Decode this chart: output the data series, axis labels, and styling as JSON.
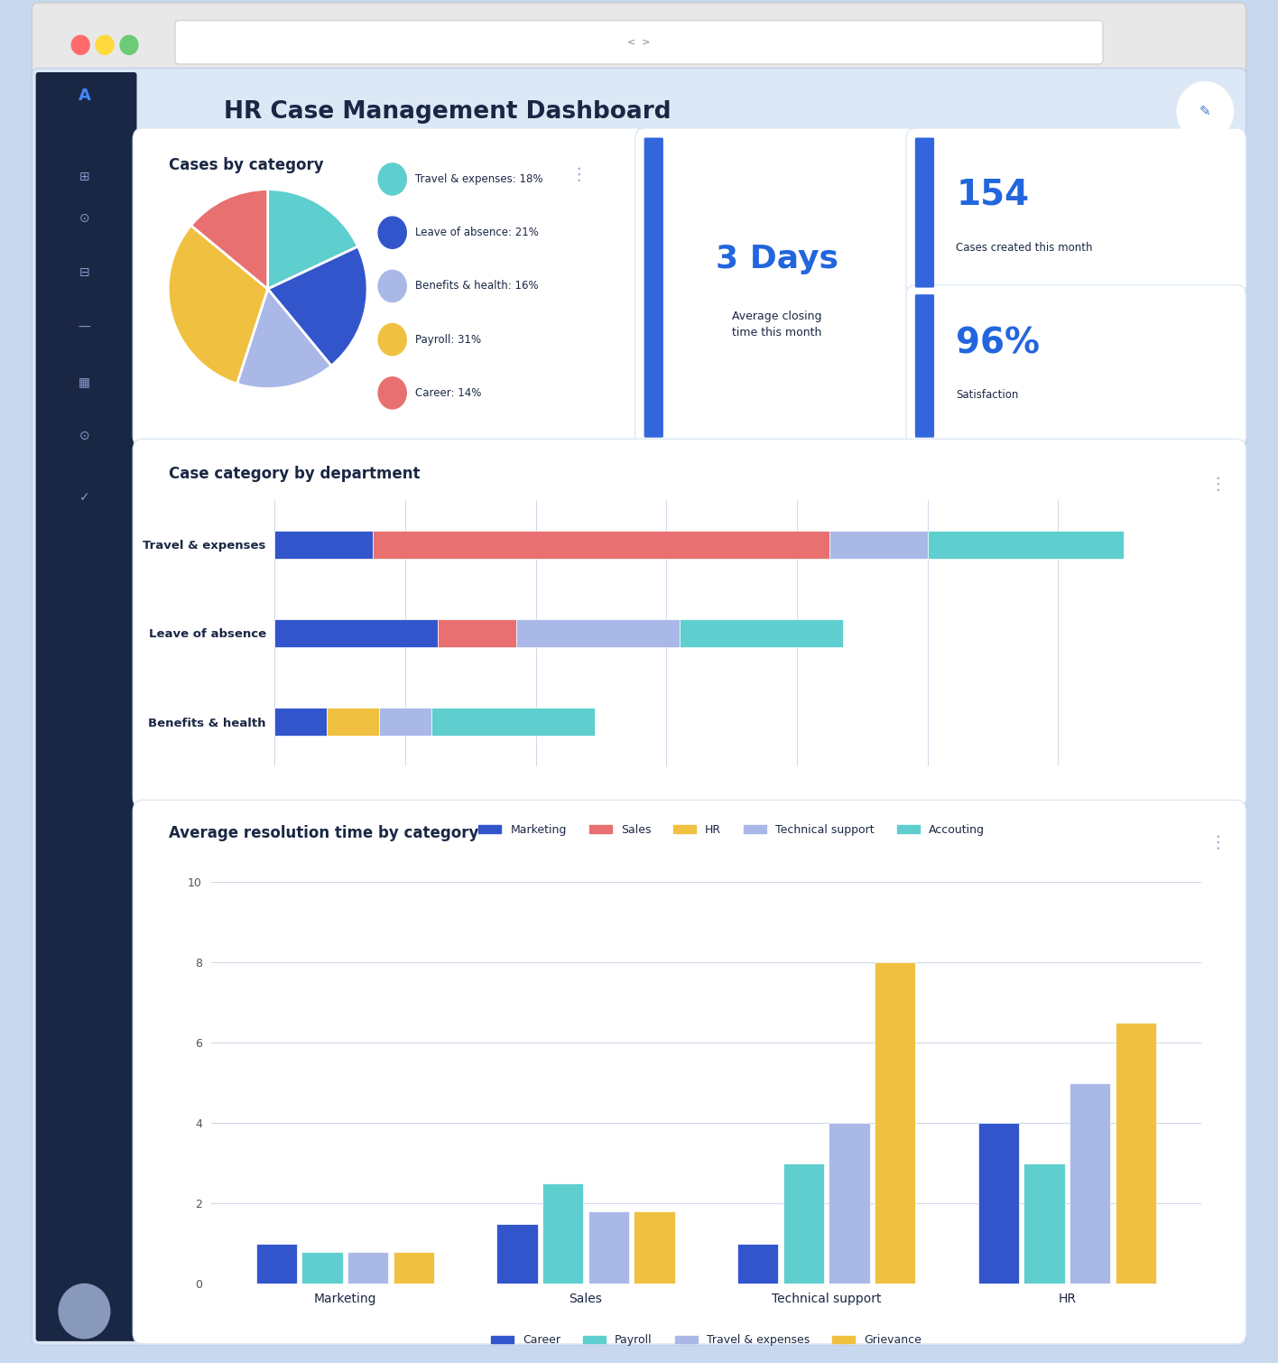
{
  "title": "HR Case Management Dashboard",
  "bg_color": "#dce8f5",
  "sidebar_color": "#1a2744",
  "card_color": "#ffffff",
  "pie_title": "Cases by category",
  "pie_labels": [
    "Travel & expenses",
    "Leave of absence",
    "Benefits & health",
    "Payroll",
    "Career"
  ],
  "pie_values": [
    18,
    21,
    16,
    31,
    14
  ],
  "pie_colors": [
    "#5ecece",
    "#3355cc",
    "#aab8e8",
    "#f0c040",
    "#e87070"
  ],
  "stat1_value": "154",
  "stat1_label": "Cases created this month",
  "stat2_value": "3 Days",
  "stat2_label": "Average closing\ntime this month",
  "stat3_value": "96%",
  "stat3_label": "Satisfaction",
  "hbar_title": "Case category by department",
  "hbar_categories": [
    "Travel & expenses",
    "Leave of absence",
    "Benefits & health"
  ],
  "hbar_departments": [
    "Marketing",
    "Sales",
    "HR",
    "Technical support",
    "Accouting"
  ],
  "hbar_colors": [
    "#3355cc",
    "#e87070",
    "#f0c040",
    "#aab8e8",
    "#5ecece"
  ],
  "hbar_data": [
    [
      1.5,
      7.0,
      0.0,
      1.5,
      3.0
    ],
    [
      2.5,
      1.2,
      0.0,
      2.5,
      2.5
    ],
    [
      0.8,
      0.0,
      0.8,
      0.8,
      2.5
    ]
  ],
  "vbar_title": "Average resolution time by category",
  "vbar_groups": [
    "Marketing",
    "Sales",
    "Technical support",
    "HR"
  ],
  "vbar_series": [
    "Career",
    "Payroll",
    "Travel & expenses",
    "Grievance"
  ],
  "vbar_colors": [
    "#3355cc",
    "#5ecece",
    "#aab8e8",
    "#f0c040"
  ],
  "vbar_data": [
    [
      1.0,
      1.5,
      1.0,
      4.0
    ],
    [
      0.8,
      2.5,
      3.0,
      3.0
    ],
    [
      0.8,
      1.8,
      4.0,
      5.0
    ],
    [
      0.8,
      1.8,
      8.0,
      6.5
    ]
  ],
  "vbar_ylim": [
    0,
    10
  ],
  "vbar_yticks": [
    0,
    2,
    4,
    6,
    8,
    10
  ]
}
